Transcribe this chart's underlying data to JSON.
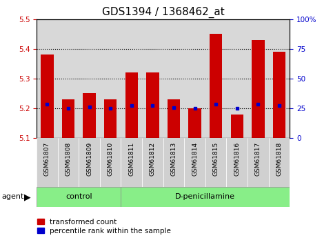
{
  "title": "GDS1394 / 1368462_at",
  "samples": [
    "GSM61807",
    "GSM61808",
    "GSM61809",
    "GSM61810",
    "GSM61811",
    "GSM61812",
    "GSM61813",
    "GSM61814",
    "GSM61815",
    "GSM61816",
    "GSM61817",
    "GSM61818"
  ],
  "red_values": [
    5.38,
    5.23,
    5.25,
    5.23,
    5.32,
    5.32,
    5.23,
    5.2,
    5.45,
    5.18,
    5.43,
    5.39
  ],
  "blue_values": [
    5.215,
    5.2,
    5.205,
    5.2,
    5.21,
    5.21,
    5.202,
    5.2,
    5.215,
    5.2,
    5.215,
    5.21
  ],
  "ylim_left": [
    5.1,
    5.5
  ],
  "ylim_right": [
    0,
    100
  ],
  "right_ticks": [
    0,
    25,
    50,
    75,
    100
  ],
  "right_tick_labels": [
    "0",
    "25",
    "50",
    "75",
    "100%"
  ],
  "left_ticks": [
    5.1,
    5.2,
    5.3,
    5.4,
    5.5
  ],
  "dotted_lines": [
    5.2,
    5.3,
    5.4
  ],
  "bar_width": 0.6,
  "bar_color": "#cc0000",
  "dot_color": "#0000cc",
  "ybase": 5.1,
  "group1_label": "control",
  "group2_label": "D-penicillamine",
  "group1_count": 4,
  "group2_count": 8,
  "agent_label": "agent",
  "legend_red": "transformed count",
  "legend_blue": "percentile rank within the sample",
  "group_bg_color": "#88ee88",
  "tick_label_color_left": "#cc0000",
  "tick_label_color_right": "#0000cc",
  "axis_facecolor": "#d8d8d8",
  "title_fontsize": 11,
  "tick_fontsize": 7.5,
  "sample_fontsize": 6.5
}
